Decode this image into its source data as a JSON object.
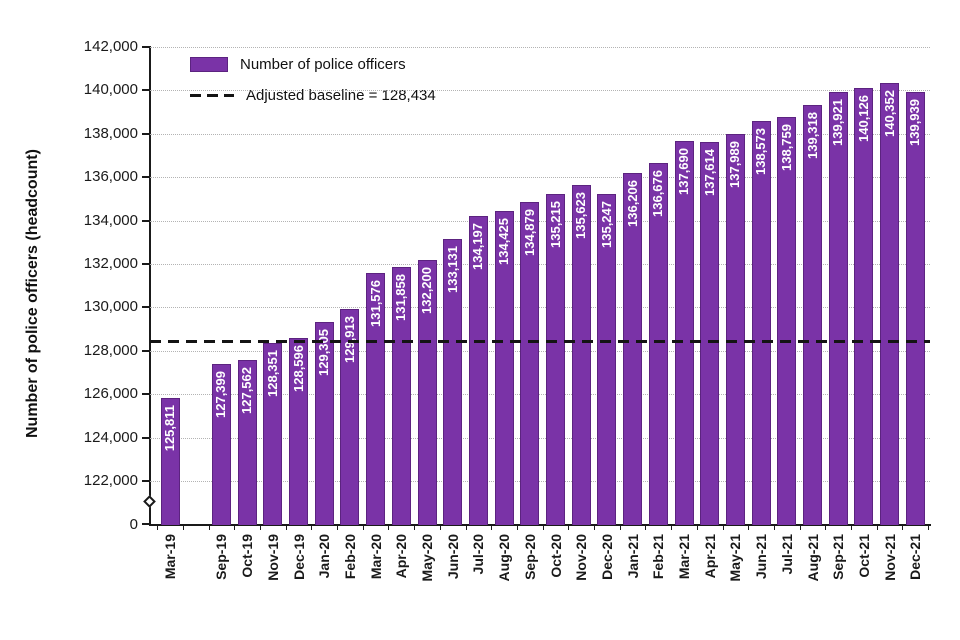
{
  "chart_data": {
    "type": "bar",
    "title": "",
    "xlabel": "",
    "ylabel": "Number of police officers (headcount)",
    "categories": [
      "Mar-19",
      "Sep-19",
      "Oct-19",
      "Nov-19",
      "Dec-19",
      "Jan-20",
      "Feb-20",
      "Mar-20",
      "Apr-20",
      "May-20",
      "Jun-20",
      "Jul-20",
      "Aug-20",
      "Sep-20",
      "Oct-20",
      "Nov-20",
      "Dec-20",
      "Jan-21",
      "Feb-21",
      "Mar-21",
      "Apr-21",
      "May-21",
      "Jun-21",
      "Jul-21",
      "Aug-21",
      "Sep-21",
      "Oct-21",
      "Nov-21",
      "Dec-21"
    ],
    "values": [
      125811,
      127399,
      127562,
      128351,
      128596,
      129305,
      129913,
      131576,
      131858,
      132200,
      133131,
      134197,
      134425,
      134879,
      135215,
      135623,
      135247,
      136206,
      136676,
      137690,
      137614,
      137989,
      138573,
      138759,
      139318,
      139921,
      140126,
      140352,
      139939
    ],
    "baseline": {
      "value": 128434,
      "label": "Adjusted baseline = 128,434"
    },
    "y_ticks": [
      122000,
      124000,
      126000,
      128000,
      130000,
      132000,
      134000,
      136000,
      138000,
      140000,
      142000
    ],
    "y_origin_label": "0",
    "ylim": [
      122000,
      142000
    ],
    "axis_break": true,
    "gap_after_first_category": true,
    "grid": "horizontal-dotted",
    "legend_position": "top-left-inside",
    "bar_color": "#7a33a7",
    "bar_border_color": "#5c2380",
    "baseline_color": "#141414",
    "value_label_color": "#ffffff"
  },
  "legend": {
    "series_label": "Number of police officers",
    "baseline_label": "Adjusted baseline = 128,434"
  }
}
